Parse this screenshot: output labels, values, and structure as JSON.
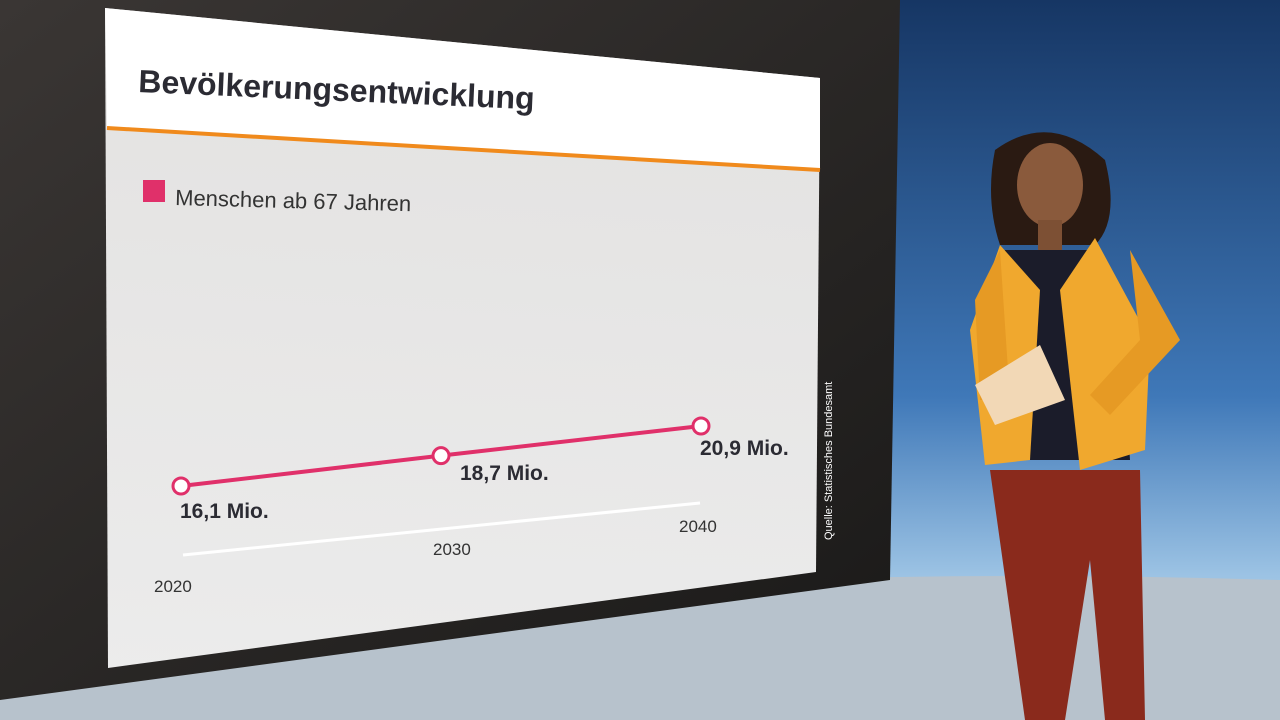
{
  "chart_data": {
    "type": "line",
    "title": "Bevölkerungsentwicklung",
    "source": "Quelle: Statistisches Bundesamt",
    "categories": [
      "2020",
      "2030",
      "2040"
    ],
    "series": [
      {
        "name": "Menschen ab 67 Jahren",
        "color": "#e0306a",
        "values": [
          16.1,
          18.7,
          20.9
        ],
        "value_labels": [
          "16,1 Mio.",
          "18,7 Mio.",
          "20,9 Mio."
        ]
      }
    ]
  }
}
